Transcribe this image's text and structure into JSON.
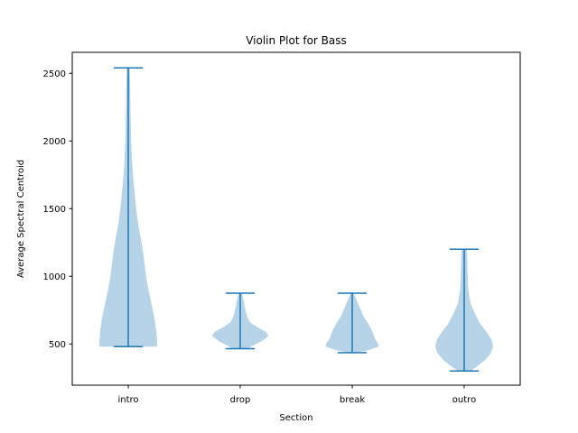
{
  "chart_data": {
    "type": "violin",
    "title": "Violin Plot for Bass",
    "xlabel": "Section",
    "ylabel": "Average Spectral Centroid",
    "categories": [
      "intro",
      "drop",
      "break",
      "outro"
    ],
    "ylim": [
      195,
      2655
    ],
    "yticks": [
      500,
      1000,
      1500,
      2000,
      2500
    ],
    "grid": false,
    "colors": {
      "body": "#b7d3e8",
      "line": "#1f77b4"
    },
    "series": [
      {
        "min": 480,
        "max": 2540,
        "profile": [
          [
            480,
            1
          ],
          [
            520,
            1
          ],
          [
            600,
            0.97
          ],
          [
            700,
            0.9
          ],
          [
            800,
            0.8
          ],
          [
            900,
            0.7
          ],
          [
            1000,
            0.62
          ],
          [
            1100,
            0.56
          ],
          [
            1200,
            0.5
          ],
          [
            1300,
            0.42
          ],
          [
            1400,
            0.33
          ],
          [
            1550,
            0.25
          ],
          [
            1700,
            0.18
          ],
          [
            1850,
            0.13
          ],
          [
            2000,
            0.1
          ],
          [
            2200,
            0.08
          ],
          [
            2400,
            0.07
          ],
          [
            2540,
            0.05
          ]
        ]
      },
      {
        "min": 465,
        "max": 875,
        "profile": [
          [
            465,
            0.26
          ],
          [
            490,
            0.46
          ],
          [
            520,
            0.74
          ],
          [
            560,
            0.98
          ],
          [
            590,
            0.88
          ],
          [
            620,
            0.62
          ],
          [
            660,
            0.34
          ],
          [
            700,
            0.24
          ],
          [
            760,
            0.17
          ],
          [
            820,
            0.12
          ],
          [
            875,
            0.06
          ]
        ]
      },
      {
        "min": 435,
        "max": 875,
        "profile": [
          [
            435,
            0.12
          ],
          [
            455,
            0.57
          ],
          [
            480,
            0.92
          ],
          [
            500,
            0.9
          ],
          [
            540,
            0.78
          ],
          [
            600,
            0.68
          ],
          [
            650,
            0.55
          ],
          [
            700,
            0.4
          ],
          [
            760,
            0.28
          ],
          [
            820,
            0.16
          ],
          [
            875,
            0.05
          ]
        ]
      },
      {
        "min": 300,
        "max": 1200,
        "profile": [
          [
            300,
            0.22
          ],
          [
            330,
            0.42
          ],
          [
            380,
            0.72
          ],
          [
            430,
            0.92
          ],
          [
            480,
            1
          ],
          [
            530,
            0.95
          ],
          [
            580,
            0.8
          ],
          [
            650,
            0.55
          ],
          [
            720,
            0.38
          ],
          [
            800,
            0.22
          ],
          [
            900,
            0.14
          ],
          [
            1000,
            0.12
          ],
          [
            1100,
            0.11
          ],
          [
            1200,
            0.09
          ]
        ]
      }
    ]
  }
}
